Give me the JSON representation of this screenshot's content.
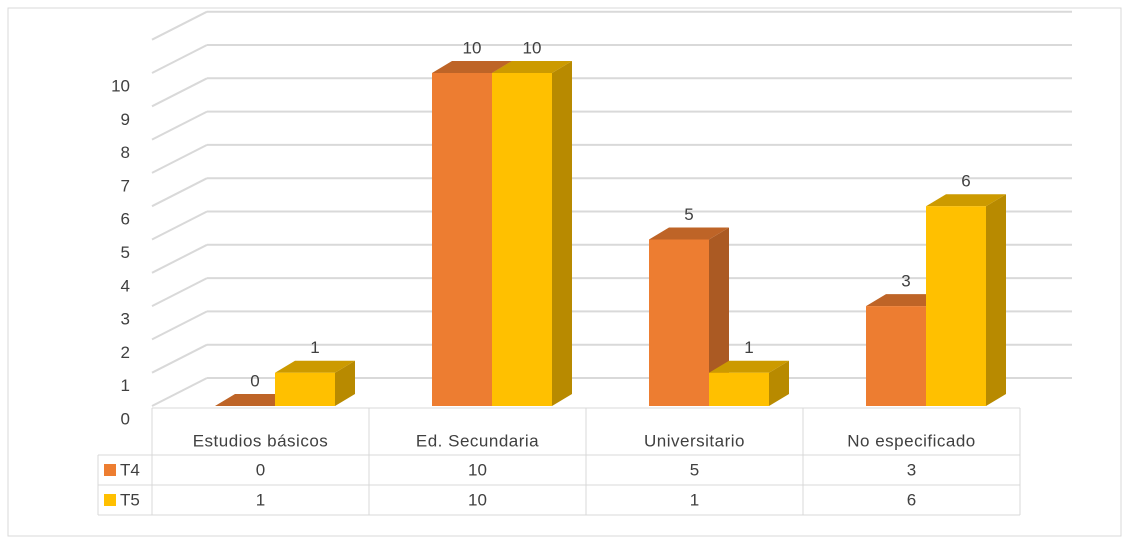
{
  "chart_data": {
    "type": "bar3d",
    "categories": [
      "Estudios básicos",
      "Ed. Secundaria",
      "Universitario",
      "No especificado"
    ],
    "series": [
      {
        "name": "T4",
        "color": "#ED7D31",
        "values": [
          0,
          10,
          5,
          3
        ]
      },
      {
        "name": "T5",
        "color": "#FFC000",
        "values": [
          1,
          10,
          1,
          6
        ]
      }
    ],
    "ylim": [
      0,
      11
    ],
    "yticks": [
      0,
      1,
      2,
      3,
      4,
      5,
      6,
      7,
      8,
      9,
      10
    ],
    "grid": true,
    "data_table": true
  }
}
